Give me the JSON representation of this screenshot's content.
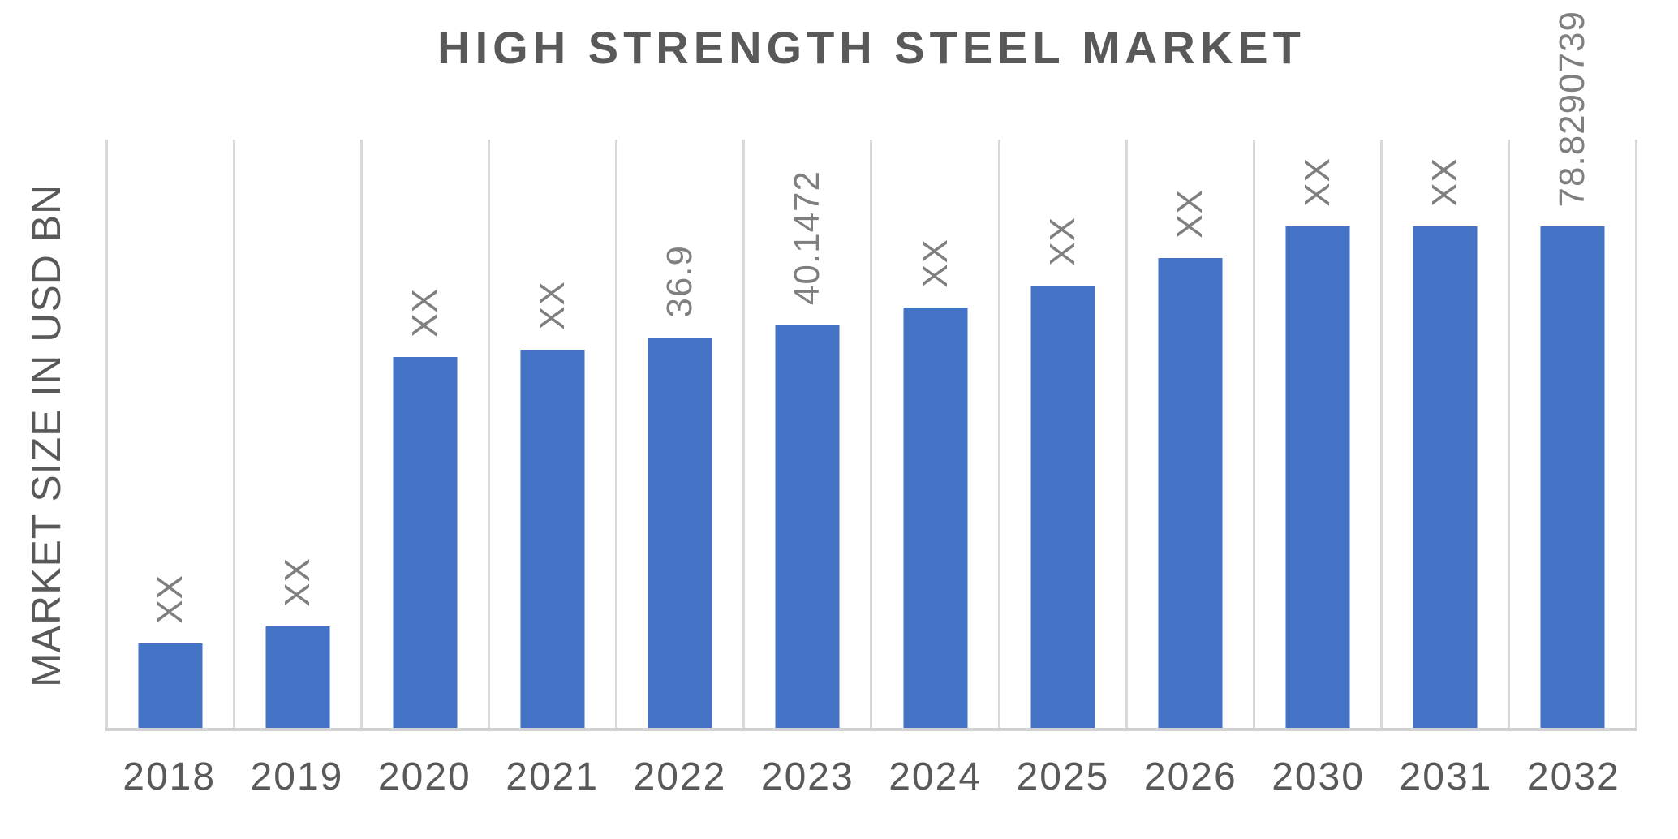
{
  "title": "HIGH STRENGTH STEEL MARKET",
  "y_axis_label": "MARKET SIZE IN USD BN",
  "colors": {
    "bar": "#4472C4",
    "title-text": "#595959",
    "axis-text": "#595959",
    "data-label-text": "#7F7F7F",
    "gridline": "#D9D9D9",
    "axis-line": "#D2D2D2"
  },
  "chart_data": {
    "type": "bar",
    "title": "HIGH STRENGTH STEEL MARKET",
    "ylabel": "MARKET SIZE IN USD BN",
    "xlabel": "",
    "units": "USD BN",
    "categories": [
      "2018",
      "2019",
      "2020",
      "2021",
      "2022",
      "2023",
      "2024",
      "2025",
      "2026",
      "2030",
      "2031",
      "2032"
    ],
    "data_labels": [
      "XX",
      "XX",
      "XX",
      "XX",
      "36.9",
      "40.1472",
      "XX",
      "XX",
      "XX",
      "XX",
      "XX",
      "78.8290739"
    ],
    "series": [
      {
        "name": "Market Size",
        "values": [
          null,
          null,
          null,
          null,
          36.9,
          40.1472,
          null,
          null,
          null,
          null,
          null,
          78.8290739
        ]
      }
    ],
    "bar_height_frac": [
      0.144,
      0.173,
      0.63,
      0.643,
      0.663,
      0.686,
      0.715,
      0.752,
      0.798,
      0.852,
      0.852,
      0.852
    ],
    "bar_color": "#4472C4",
    "grid": "vertical-only",
    "legend": "none",
    "data_label_rotation_deg": 90,
    "x_label_rotation_deg": 0
  }
}
